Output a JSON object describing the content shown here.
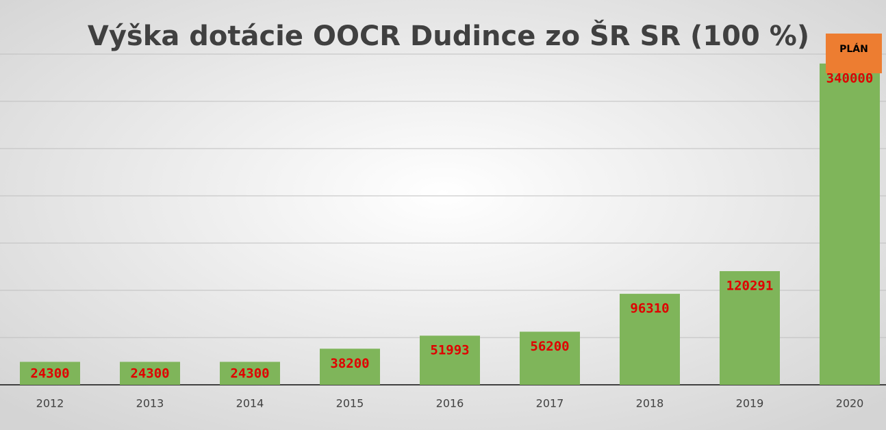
{
  "chart_data": {
    "type": "bar",
    "title": "Výška dotácie OOCR Dudince zo ŠR SR (100 %)",
    "annotation": "PLÁN",
    "categories": [
      "2012",
      "2013",
      "2014",
      "2015",
      "2016",
      "2017",
      "2018",
      "2019",
      "2020"
    ],
    "values": [
      24300,
      24300,
      24300,
      38200,
      51993,
      56200,
      96310,
      120291,
      340000
    ],
    "color": "#7fb55a",
    "annotation_color": "#ed7d31",
    "ylim": [
      0,
      350000
    ],
    "yticks": [
      0,
      50000,
      100000,
      150000,
      200000,
      250000,
      300000,
      350000
    ],
    "grid": true
  }
}
